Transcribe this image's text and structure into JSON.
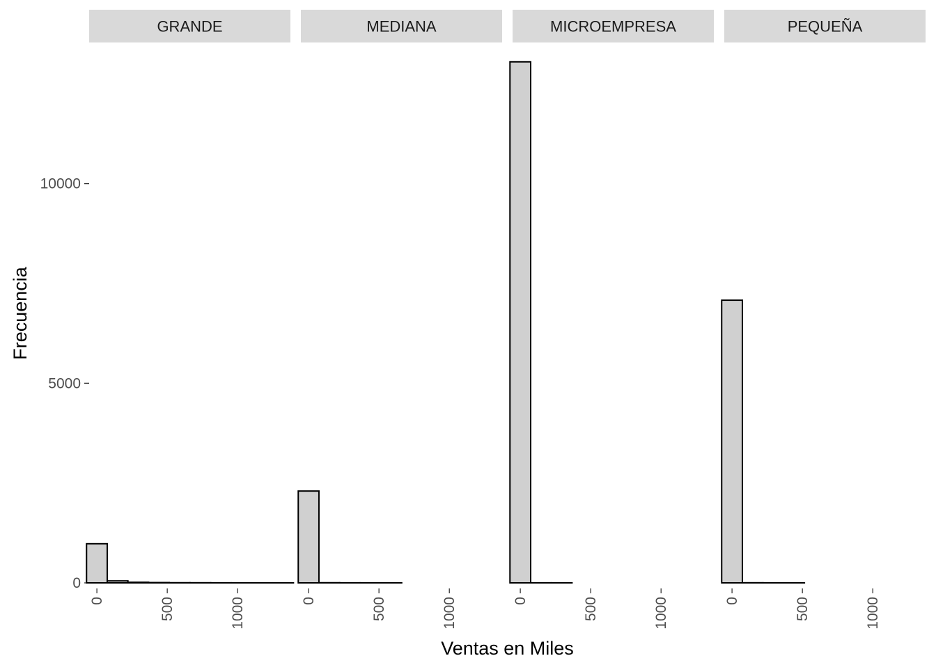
{
  "chart_data": {
    "type": "bar",
    "subtype": "faceted-histogram",
    "xlabel": "Ventas en Miles",
    "ylabel": "Frecuencia",
    "ylim": [
      0,
      13500
    ],
    "yticks": [
      0,
      5000,
      10000
    ],
    "xlim": [
      -55,
      1375
    ],
    "xticks": [
      0,
      500,
      1000
    ],
    "bin_width": 147,
    "bin_starts": [
      -73.5,
      73.5,
      220.5,
      367.5,
      514.5,
      661.5,
      808.5,
      955.5,
      1102.5,
      1249.5
    ],
    "grid": false,
    "bar_fill": "#d0d0d0",
    "bar_stroke": "#000000",
    "strip_fill": "#d9d9d9",
    "facets": [
      {
        "name": "GRANDE",
        "values": [
          980,
          50,
          15,
          8,
          4,
          3,
          2,
          1,
          1,
          1
        ]
      },
      {
        "name": "MEDIANA",
        "values": [
          2300,
          4,
          2,
          1,
          1,
          0,
          0,
          0,
          0,
          0
        ]
      },
      {
        "name": "MICROEMPRESA",
        "values": [
          13050,
          2,
          1,
          0,
          0,
          0,
          0,
          0,
          0,
          0
        ]
      },
      {
        "name": "PEQUEÑA",
        "values": [
          7080,
          3,
          1,
          1,
          0,
          0,
          0,
          0,
          0,
          0
        ]
      }
    ]
  }
}
